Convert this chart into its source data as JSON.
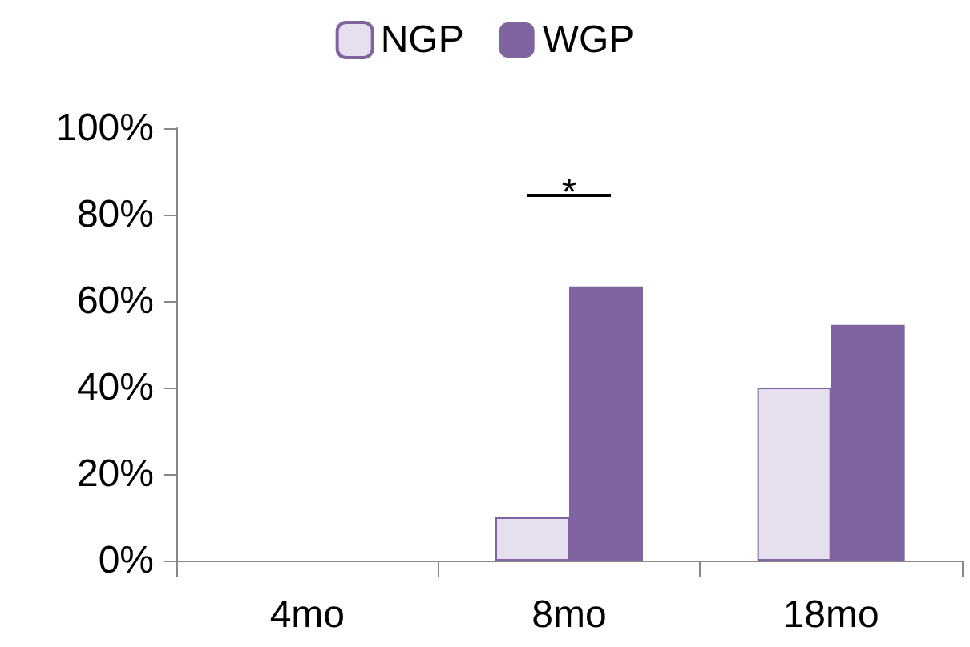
{
  "chart_data": {
    "type": "bar",
    "categories": [
      "4mo",
      "8mo",
      "18mo"
    ],
    "series": [
      {
        "name": "NGP",
        "color": "#e6e0ee",
        "values": [
          0,
          10,
          40
        ]
      },
      {
        "name": "WGP",
        "color": "#8064a2",
        "values": [
          0,
          63.4,
          54.5
        ]
      }
    ],
    "ylim": [
      0,
      100
    ],
    "yticks": [
      {
        "value": 0,
        "label": "0%"
      },
      {
        "value": 20,
        "label": "20%"
      },
      {
        "value": 40,
        "label": "40%"
      },
      {
        "value": 60,
        "label": "60%"
      },
      {
        "value": 80,
        "label": "80%"
      },
      {
        "value": 100,
        "label": "100%"
      }
    ],
    "annotations": [
      "*"
    ],
    "grid": false,
    "legend": "top"
  }
}
